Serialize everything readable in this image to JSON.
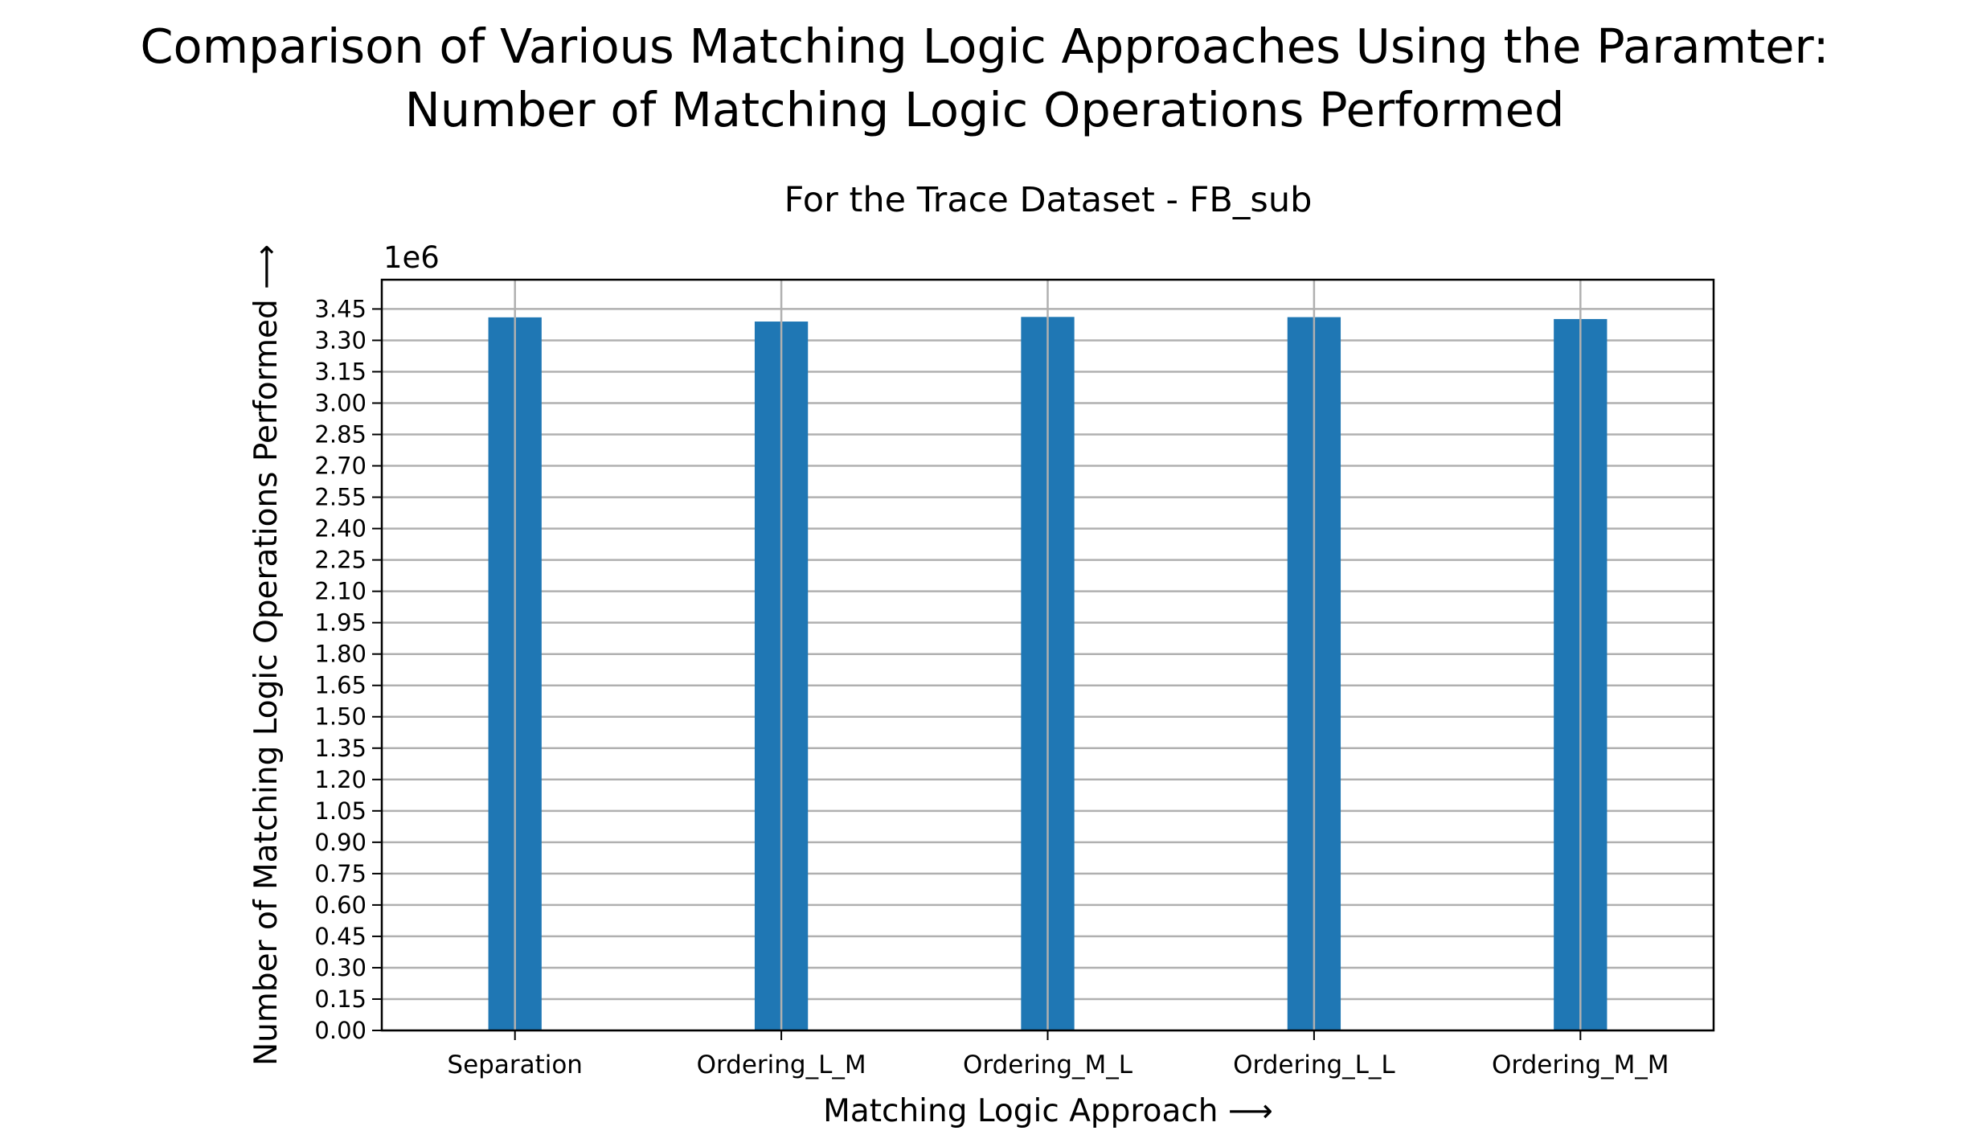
{
  "chart_data": {
    "type": "bar",
    "title": "Comparison of Various Matching Logic Approaches Using the Paramter:",
    "title_line2": "Number of Matching Logic Operations Performed",
    "subtitle": "For the Trace Dataset - FB_sub",
    "xlabel": "Matching Logic Approach ⟶",
    "ylabel": "Number of Matching Logic Operations Performed ⟶",
    "y_offset_label": "1e6",
    "y_scale": 1000000,
    "categories": [
      "Separation",
      "Ordering_L_M",
      "Ordering_M_L",
      "Ordering_L_L",
      "Ordering_M_M"
    ],
    "values": [
      3410000,
      3390000,
      3412000,
      3411000,
      3402000
    ],
    "ylim": [
      0,
      3590000
    ],
    "y_ticks": [
      "0.00",
      "0.15",
      "0.30",
      "0.45",
      "0.60",
      "0.75",
      "0.90",
      "1.05",
      "1.20",
      "1.35",
      "1.50",
      "1.65",
      "1.80",
      "1.95",
      "2.10",
      "2.25",
      "2.40",
      "2.55",
      "2.70",
      "2.85",
      "3.00",
      "3.15",
      "3.30",
      "3.45"
    ],
    "grid": true,
    "bar_color": "#1f77b4",
    "grid_color": "#b0b0b0"
  }
}
